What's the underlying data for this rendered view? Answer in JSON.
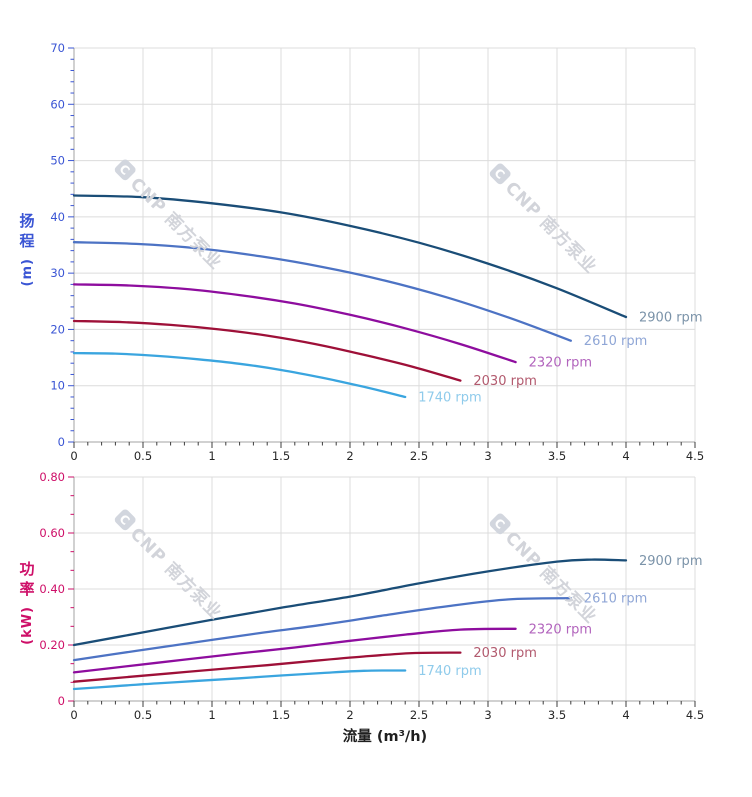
{
  "watermark": {
    "logo_letter": "C",
    "text": "CNP 南方泵业",
    "color": "#d2d4da"
  },
  "colors": {
    "grid": "#dcdcdc",
    "axis_line": "#a3a3a3",
    "x_tick": "#3c3c3c",
    "x_label": "#262626",
    "head_axis": "#3a55d4",
    "power_axis": "#ce0f68",
    "x_title": "#1f1f1f"
  },
  "chart_data": [
    {
      "id": "head",
      "type": "line",
      "title": "",
      "ylabel": "扬程",
      "ylabel_unit": "(m)",
      "xlabel": "流量 (m³/h)",
      "xlim": [
        0,
        4.5
      ],
      "ylim": [
        0,
        70
      ],
      "x_major": 0.5,
      "x_minor": 0.1,
      "y_major": 10,
      "y_minor": 2,
      "y_tick_format": "int",
      "grid": true,
      "legend_position": "curve-end-labels",
      "series": [
        {
          "name": "2900 rpm",
          "color": "#1a4d77",
          "label_color": "#7b93a9",
          "points": [
            [
              0,
              43.8
            ],
            [
              0.5,
              43.5
            ],
            [
              1,
              42.4
            ],
            [
              1.5,
              40.8
            ],
            [
              2,
              38.4
            ],
            [
              2.5,
              35.4
            ],
            [
              3,
              31.7
            ],
            [
              3.5,
              27.3
            ],
            [
              4,
              22.2
            ]
          ]
        },
        {
          "name": "2610 rpm",
          "color": "#4d73c4",
          "label_color": "#8fa6d6",
          "points": [
            [
              0,
              35.5
            ],
            [
              0.45,
              35.2
            ],
            [
              0.9,
              34.4
            ],
            [
              1.35,
              33
            ],
            [
              1.8,
              31.1
            ],
            [
              2.25,
              28.7
            ],
            [
              2.7,
              25.7
            ],
            [
              3.15,
              22.1
            ],
            [
              3.6,
              18
            ]
          ]
        },
        {
          "name": "2320 rpm",
          "color": "#8e0d9e",
          "label_color": "#b264bd",
          "points": [
            [
              0,
              28
            ],
            [
              0.4,
              27.8
            ],
            [
              0.8,
              27.2
            ],
            [
              1.2,
              26.1
            ],
            [
              1.6,
              24.6
            ],
            [
              2,
              22.6
            ],
            [
              2.4,
              20.2
            ],
            [
              2.8,
              17.4
            ],
            [
              3.2,
              14.2
            ]
          ]
        },
        {
          "name": "2030 rpm",
          "color": "#9e1038",
          "label_color": "#b25a6e",
          "points": [
            [
              0,
              21.5
            ],
            [
              0.35,
              21.3
            ],
            [
              0.7,
              20.8
            ],
            [
              1.05,
              20
            ],
            [
              1.4,
              18.9
            ],
            [
              1.75,
              17.4
            ],
            [
              2.1,
              15.5
            ],
            [
              2.45,
              13.4
            ],
            [
              2.8,
              10.9
            ]
          ]
        },
        {
          "name": "1740 rpm",
          "color": "#3aa5df",
          "label_color": "#8fcbeb",
          "points": [
            [
              0,
              15.8
            ],
            [
              0.3,
              15.7
            ],
            [
              0.6,
              15.3
            ],
            [
              0.9,
              14.7
            ],
            [
              1.2,
              13.9
            ],
            [
              1.5,
              12.8
            ],
            [
              1.8,
              11.4
            ],
            [
              2.1,
              9.8
            ],
            [
              2.4,
              8
            ]
          ]
        }
      ]
    },
    {
      "id": "power",
      "type": "line",
      "title": "",
      "ylabel": "功率",
      "ylabel_unit": "(kW)",
      "xlabel": "流量 (m³/h)",
      "xlim": [
        0,
        4.5
      ],
      "ylim": [
        0,
        0.8
      ],
      "x_major": 0.5,
      "x_minor": 0.1,
      "y_major": 0.2,
      "y_minor": 0.0666667,
      "y_tick_format": "dec2",
      "grid": true,
      "legend_position": "curve-end-labels",
      "series": [
        {
          "name": "2900 rpm",
          "color": "#1a4d77",
          "label_color": "#7b93a9",
          "points": [
            [
              0,
              0.2
            ],
            [
              0.5,
              0.245
            ],
            [
              1,
              0.29
            ],
            [
              1.5,
              0.333
            ],
            [
              2,
              0.373
            ],
            [
              2.5,
              0.42
            ],
            [
              3,
              0.463
            ],
            [
              3.5,
              0.498
            ],
            [
              3.75,
              0.505
            ],
            [
              4,
              0.502
            ]
          ]
        },
        {
          "name": "2610 rpm",
          "color": "#4d73c4",
          "label_color": "#8fa6d6",
          "points": [
            [
              0,
              0.146
            ],
            [
              0.45,
              0.179
            ],
            [
              0.9,
              0.211
            ],
            [
              1.35,
              0.243
            ],
            [
              1.8,
              0.272
            ],
            [
              2.25,
              0.306
            ],
            [
              2.7,
              0.338
            ],
            [
              3.15,
              0.363
            ],
            [
              3.6,
              0.367
            ]
          ]
        },
        {
          "name": "2320 rpm",
          "color": "#8e0d9e",
          "label_color": "#b264bd",
          "points": [
            [
              0,
              0.102
            ],
            [
              0.4,
              0.125
            ],
            [
              0.8,
              0.148
            ],
            [
              1.2,
              0.17
            ],
            [
              1.6,
              0.191
            ],
            [
              2,
              0.215
            ],
            [
              2.4,
              0.237
            ],
            [
              2.8,
              0.255
            ],
            [
              3.2,
              0.258
            ]
          ]
        },
        {
          "name": "2030 rpm",
          "color": "#9e1038",
          "label_color": "#b25a6e",
          "points": [
            [
              0,
              0.069
            ],
            [
              0.35,
              0.084
            ],
            [
              0.7,
              0.099
            ],
            [
              1.05,
              0.114
            ],
            [
              1.4,
              0.128
            ],
            [
              1.75,
              0.144
            ],
            [
              2.1,
              0.159
            ],
            [
              2.45,
              0.171
            ],
            [
              2.8,
              0.173
            ]
          ]
        },
        {
          "name": "1740 rpm",
          "color": "#3aa5df",
          "label_color": "#8fcbeb",
          "points": [
            [
              0,
              0.043
            ],
            [
              0.3,
              0.053
            ],
            [
              0.6,
              0.063
            ],
            [
              0.9,
              0.072
            ],
            [
              1.2,
              0.081
            ],
            [
              1.5,
              0.091
            ],
            [
              1.8,
              0.1
            ],
            [
              2.1,
              0.108
            ],
            [
              2.4,
              0.109
            ]
          ]
        }
      ]
    }
  ]
}
